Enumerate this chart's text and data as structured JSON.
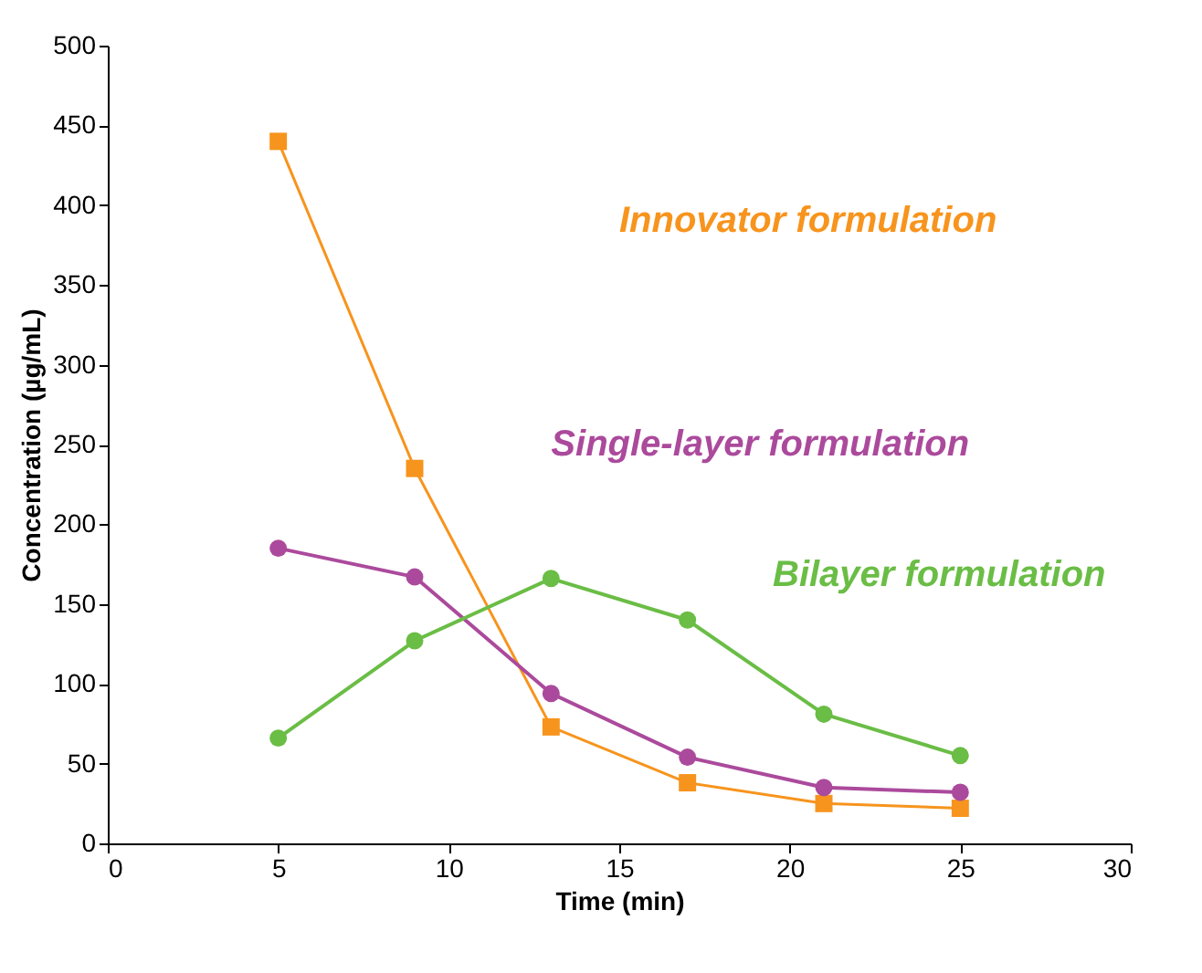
{
  "chart_data": {
    "type": "line",
    "xlabel": "Time (min)",
    "ylabel": "Concentration (µg/mL)",
    "x": [
      5,
      9,
      13,
      17,
      21,
      25
    ],
    "series": [
      {
        "name": "Innovator formulation",
        "color": "#f7941d",
        "marker": "square",
        "values": [
          440,
          235,
          73,
          38,
          25,
          22
        ]
      },
      {
        "name": "Single-layer formulation",
        "color": "#ab4a9c",
        "marker": "circle",
        "values": [
          185,
          167,
          94,
          54,
          35,
          32
        ]
      },
      {
        "name": "Bilayer formulation",
        "color": "#6abd45",
        "marker": "circle",
        "values": [
          66,
          127,
          166,
          140,
          81,
          55
        ]
      }
    ],
    "xlim": [
      0,
      30
    ],
    "xticks": [
      0,
      5,
      10,
      15,
      20,
      25,
      30
    ],
    "ylim": [
      0,
      500
    ],
    "yticks": [
      0,
      50,
      100,
      150,
      200,
      250,
      300,
      350,
      400,
      450,
      500
    ],
    "grid": false,
    "line_style": "solid"
  }
}
